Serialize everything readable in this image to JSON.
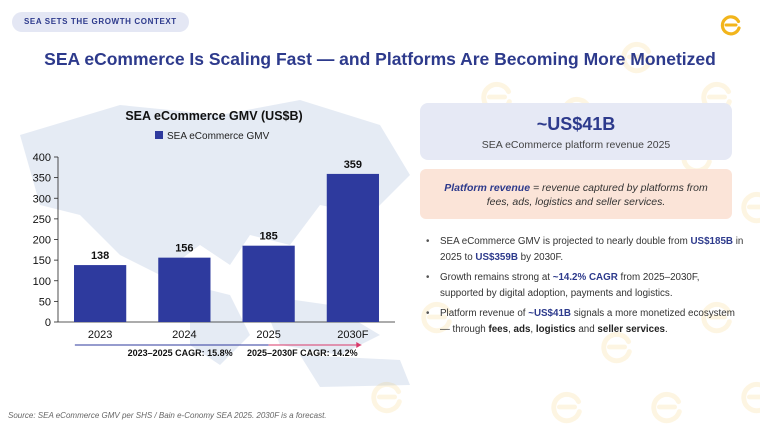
{
  "header": {
    "badge": "SEA SETS THE GROWTH CONTEXT",
    "title": "SEA eCommerce Is Scaling Fast — and Platforms Are Becoming More Monetized"
  },
  "chart_data": {
    "type": "bar",
    "title": "SEA eCommerce GMV (US$B)",
    "legend": "top",
    "categories": [
      "2023",
      "2024",
      "2025",
      "2030F"
    ],
    "series": [
      {
        "name": "SEA eCommerce GMV",
        "values": [
          138,
          156,
          185,
          359
        ]
      }
    ],
    "data_labels": [
      "138",
      "156",
      "185",
      "359"
    ],
    "ylim": [
      0,
      400
    ],
    "yticks": [
      "0",
      "50",
      "100",
      "150",
      "200",
      "250",
      "300",
      "350",
      "400"
    ],
    "grid": false,
    "annotations": [
      "2023–2025 CAGR: 15.8%",
      "2025–2030F CAGR: 14.2%"
    ]
  },
  "stat": {
    "value": "~US$41B",
    "label": "SEA eCommerce platform revenue 2025"
  },
  "definition": {
    "term": "Platform revenue",
    "text": " = revenue captured by platforms from fees, ads, logistics and seller services."
  },
  "bullets": [
    {
      "p1": "SEA eCommerce GMV is projected to nearly double from ",
      "h1": "US$185B",
      "p2": " in 2025 to ",
      "h2": "US$359B",
      "p3": " by 2030F."
    },
    {
      "p1": "Growth remains strong at ",
      "h1": "~14.2% CAGR",
      "p2": " from 2025–2030F, supported by digital adoption, payments and logistics."
    },
    {
      "p1": "Platform revenue of ",
      "h1": "~US$41B",
      "p2": " signals a more monetized ecosystem — through ",
      "b1": "fees",
      "s1": ", ",
      "b2": "ads",
      "s2": ", ",
      "b3": "logistics",
      "s3": " and ",
      "b4": "seller services",
      "p3": "."
    }
  ],
  "source": "Source: SEA eCommerce GMV per SHS / Bain e-Conomy SEA 2025. 2030F is a forecast.",
  "colors": {
    "brand": "#2d3a8c",
    "bar": "#2e3a9e",
    "accent": "#f2b51c",
    "arrow": "#d93a6a"
  }
}
